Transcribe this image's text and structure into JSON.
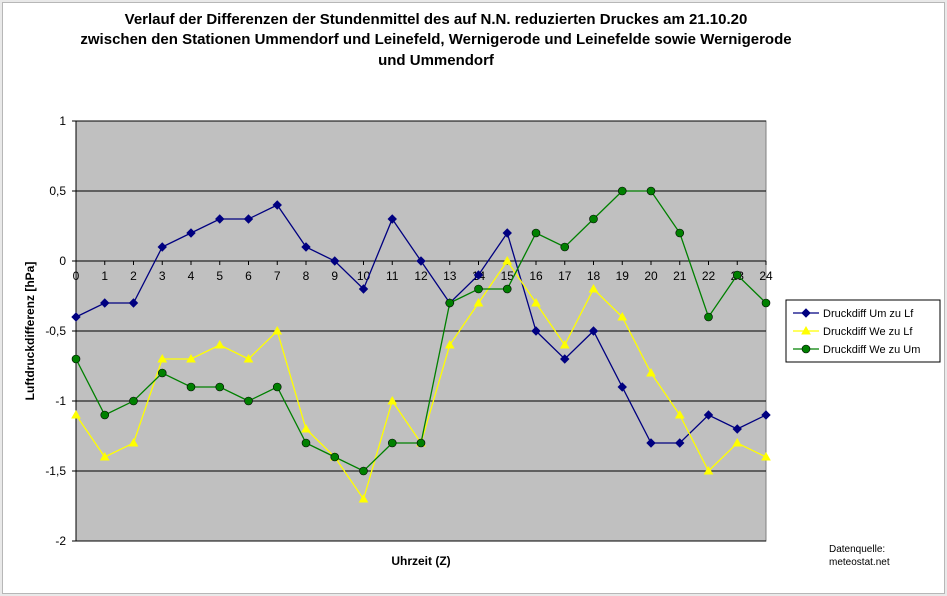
{
  "chart_data": {
    "type": "line",
    "title_lines": [
      "Verlauf der Differenzen der Stundenmittel des auf N.N. reduzierten Druckes am 21.10.20",
      "zwischen den Stationen Ummendorf und Leinefeld, Wernigerode und Leinefelde sowie Wernigerode",
      "und Ummendorf"
    ],
    "xlabel": "Uhrzeit (Z)",
    "ylabel": "Luftdruckdifferenz [hPa]",
    "x": [
      0,
      1,
      2,
      3,
      4,
      5,
      6,
      7,
      8,
      9,
      10,
      11,
      12,
      13,
      14,
      15,
      16,
      17,
      18,
      19,
      20,
      21,
      22,
      23,
      24
    ],
    "xlim": [
      0,
      24
    ],
    "ylim": [
      -2,
      1
    ],
    "yticks": [
      1,
      0.5,
      0,
      -0.5,
      -1,
      -1.5,
      -2
    ],
    "ytick_labels": [
      "1",
      "0,5",
      "0",
      "-0,5",
      "-1",
      "-1,5",
      "-2"
    ],
    "xtick_labels": [
      "0",
      "1",
      "2",
      "3",
      "4",
      "5",
      "6",
      "7",
      "8",
      "9",
      "10",
      "11",
      "12",
      "13",
      "14",
      "15",
      "16",
      "17",
      "18",
      "19",
      "20",
      "21",
      "22",
      "23",
      "24"
    ],
    "grid": "horizontal",
    "plot_background": "#c0c0c0",
    "legend_position": "right",
    "series": [
      {
        "name": "Druckdiff Um zu Lf",
        "color": "#000080",
        "marker": "diamond",
        "values": [
          -0.4,
          -0.3,
          -0.3,
          0.1,
          0.2,
          0.3,
          0.3,
          0.4,
          0.1,
          0,
          -0.2,
          0.3,
          0,
          -0.3,
          -0.1,
          0.2,
          -0.5,
          -0.7,
          -0.5,
          -0.9,
          -1.3,
          -1.3,
          -1.1,
          -1.2,
          -1.1
        ]
      },
      {
        "name": "Druckdiff We zu Lf",
        "color": "#ffff00",
        "marker": "triangle",
        "values": [
          -1.1,
          -1.4,
          -1.3,
          -0.7,
          -0.7,
          -0.6,
          -0.7,
          -0.5,
          -1.2,
          -1.4,
          -1.7,
          -1.0,
          -1.3,
          -0.6,
          -0.3,
          0,
          -0.3,
          -0.6,
          -0.2,
          -0.4,
          -0.8,
          -1.1,
          -1.5,
          -1.3,
          -1.4
        ]
      },
      {
        "name": "Druckdiff We zu Um",
        "color": "#008000",
        "marker": "circle",
        "values": [
          -0.7,
          -1.1,
          -1.0,
          -0.8,
          -0.9,
          -0.9,
          -1.0,
          -0.9,
          -1.3,
          -1.4,
          -1.5,
          -1.3,
          -1.3,
          -0.3,
          -0.2,
          -0.2,
          0.2,
          0.1,
          0.3,
          0.5,
          0.5,
          0.2,
          -0.4,
          -0.1,
          -0.3
        ]
      }
    ],
    "source_lines": [
      "Datenquelle:",
      "meteostat.net"
    ]
  }
}
